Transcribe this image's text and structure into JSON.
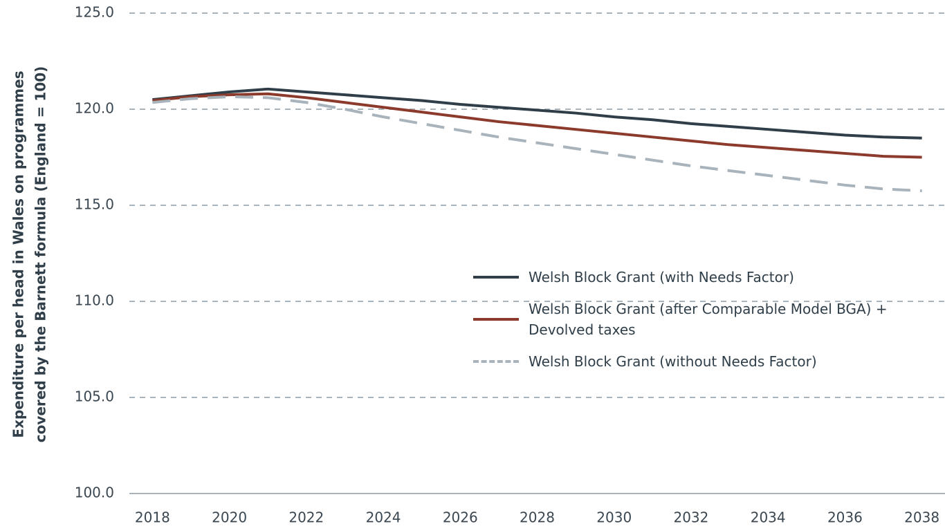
{
  "chart_data": {
    "type": "line",
    "y_label": [
      "Expenditure per head in Wales on programmes",
      "covered by the Barnett formula (England = 100)"
    ],
    "x": [
      2018,
      2019,
      2020,
      2021,
      2022,
      2023,
      2024,
      2025,
      2026,
      2027,
      2028,
      2029,
      2030,
      2031,
      2032,
      2033,
      2034,
      2035,
      2036,
      2037,
      2038
    ],
    "series": [
      {
        "name": "Welsh Block Grant (with Needs Factor)",
        "color": "#2f3e48",
        "style": "solid",
        "values": [
          120.5,
          120.7,
          120.9,
          121.05,
          120.9,
          120.75,
          120.6,
          120.45,
          120.25,
          120.1,
          119.95,
          119.8,
          119.6,
          119.45,
          119.25,
          119.1,
          118.95,
          118.8,
          118.65,
          118.55,
          118.5
        ]
      },
      {
        "name": "Welsh Block Grant (after Comparable Model BGA) + Devolved taxes",
        "color": "#8b3a2b",
        "style": "solid",
        "values": [
          120.45,
          120.65,
          120.75,
          120.8,
          120.6,
          120.35,
          120.1,
          119.85,
          119.6,
          119.35,
          119.15,
          118.95,
          118.75,
          118.55,
          118.35,
          118.15,
          118.0,
          117.85,
          117.7,
          117.55,
          117.5
        ]
      },
      {
        "name": "Welsh Block Grant (without Needs Factor)",
        "color": "#a8b3bb",
        "style": "dashed",
        "values": [
          120.35,
          120.55,
          120.65,
          120.6,
          120.35,
          120.0,
          119.6,
          119.25,
          118.9,
          118.55,
          118.25,
          117.95,
          117.65,
          117.35,
          117.05,
          116.8,
          116.55,
          116.3,
          116.05,
          115.85,
          115.75
        ]
      }
    ],
    "xlim": [
      2017.4,
      2038.6
    ],
    "xticks": [
      2018,
      2020,
      2022,
      2024,
      2026,
      2028,
      2030,
      2032,
      2034,
      2036,
      2038
    ],
    "ylim": [
      100,
      125
    ],
    "yticks": [
      {
        "value": 100,
        "label": "100.0"
      },
      {
        "value": 105,
        "label": "105.0"
      },
      {
        "value": 110,
        "label": "110.0"
      },
      {
        "value": 115,
        "label": "115.0"
      },
      {
        "value": 120,
        "label": "120.0"
      },
      {
        "value": 125,
        "label": "125.0"
      }
    ],
    "grid": true
  }
}
